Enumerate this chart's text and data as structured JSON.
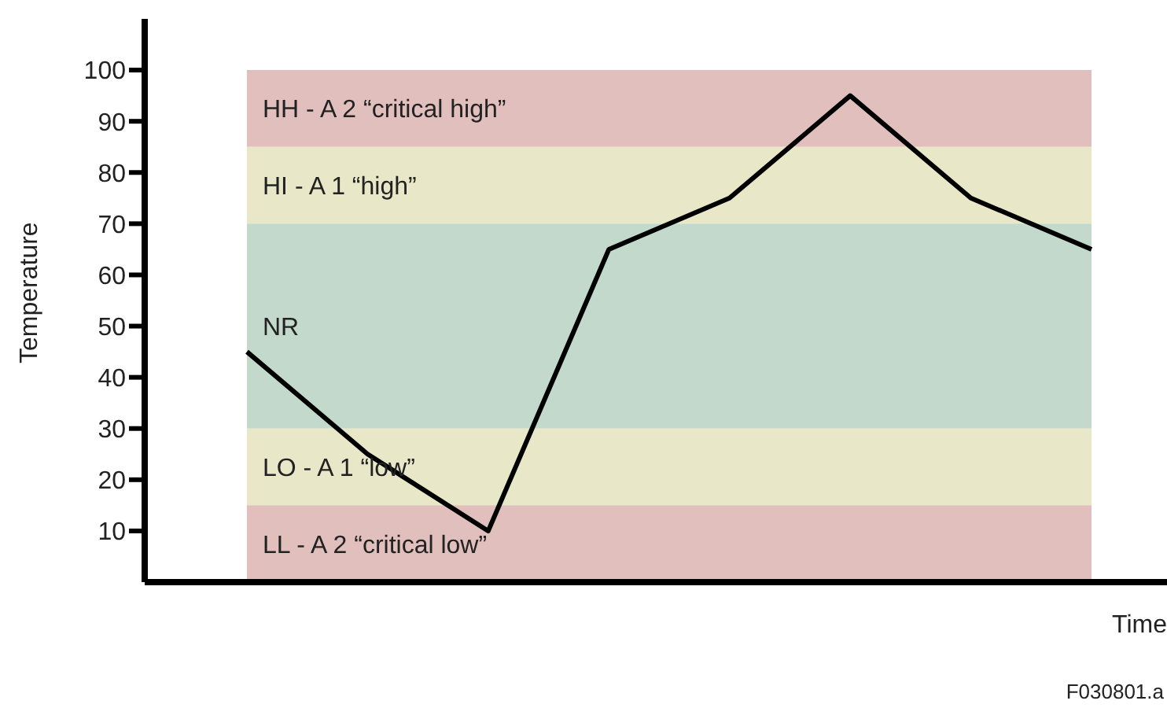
{
  "chart_data": {
    "type": "line",
    "xlabel": "Time",
    "ylabel": "Temperature",
    "categories": [
      null,
      null,
      null,
      null,
      null,
      null,
      null,
      null
    ],
    "series": [
      {
        "color": "#000000",
        "values": [
          45,
          25,
          10,
          65,
          75,
          95,
          75,
          65
        ]
      }
    ],
    "ylim": [
      0,
      110
    ],
    "yticks": [
      10,
      20,
      30,
      40,
      50,
      60,
      70,
      80,
      90,
      100
    ],
    "tick_labels": "y",
    "marker": "none",
    "line_style": "solid",
    "bands": [
      {
        "axis": "y",
        "from": 85,
        "to": 100,
        "label": "HH  - A 2 “critical high”",
        "color": "#e0bfbd"
      },
      {
        "axis": "y",
        "from": 70,
        "to": 85,
        "label": "HI - A 1 “high”",
        "color": "#e8e8c8"
      },
      {
        "axis": "y",
        "from": 30,
        "to": 70,
        "label": "NR",
        "color": "#c2d9cb"
      },
      {
        "axis": "y",
        "from": 15,
        "to": 30,
        "label": "LO  - A 1 “low”",
        "color": "#e8e8c8"
      },
      {
        "axis": "y",
        "from": 0,
        "to": 15,
        "label": "LL  - A 2 “critical low”",
        "color": "#e0bfbd"
      }
    ],
    "annotations": [
      "F030801.a"
    ]
  }
}
